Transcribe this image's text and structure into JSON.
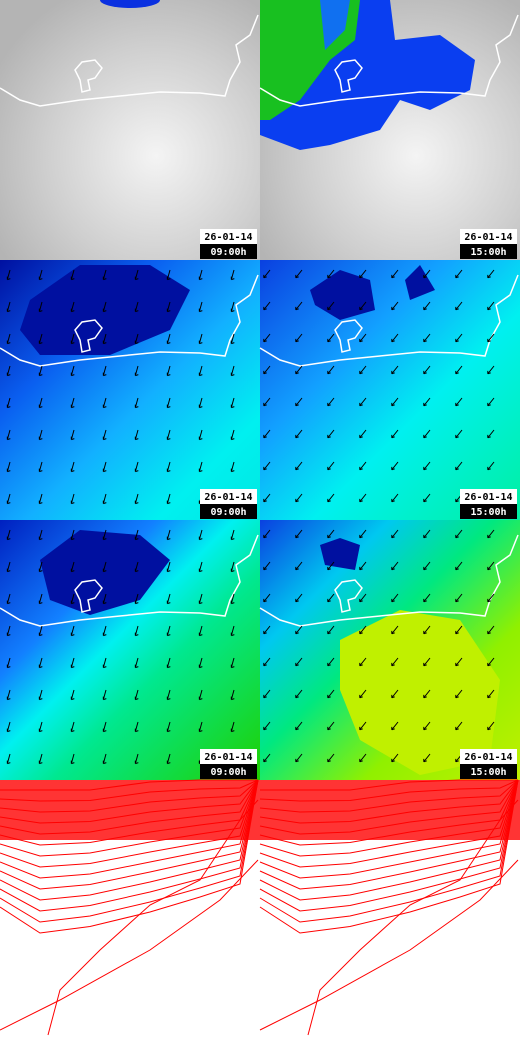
{
  "panels": [
    {
      "date": "26-01-14",
      "time": "09:00h"
    },
    {
      "date": "26-01-14",
      "time": "15:00h"
    },
    {
      "date": "26-01-14",
      "time": "09:00h"
    },
    {
      "date": "26-01-14",
      "time": "15:00h"
    },
    {
      "date": "26-01-14",
      "time": "09:00h"
    },
    {
      "date": "26-01-14",
      "time": "15:00h"
    }
  ]
}
